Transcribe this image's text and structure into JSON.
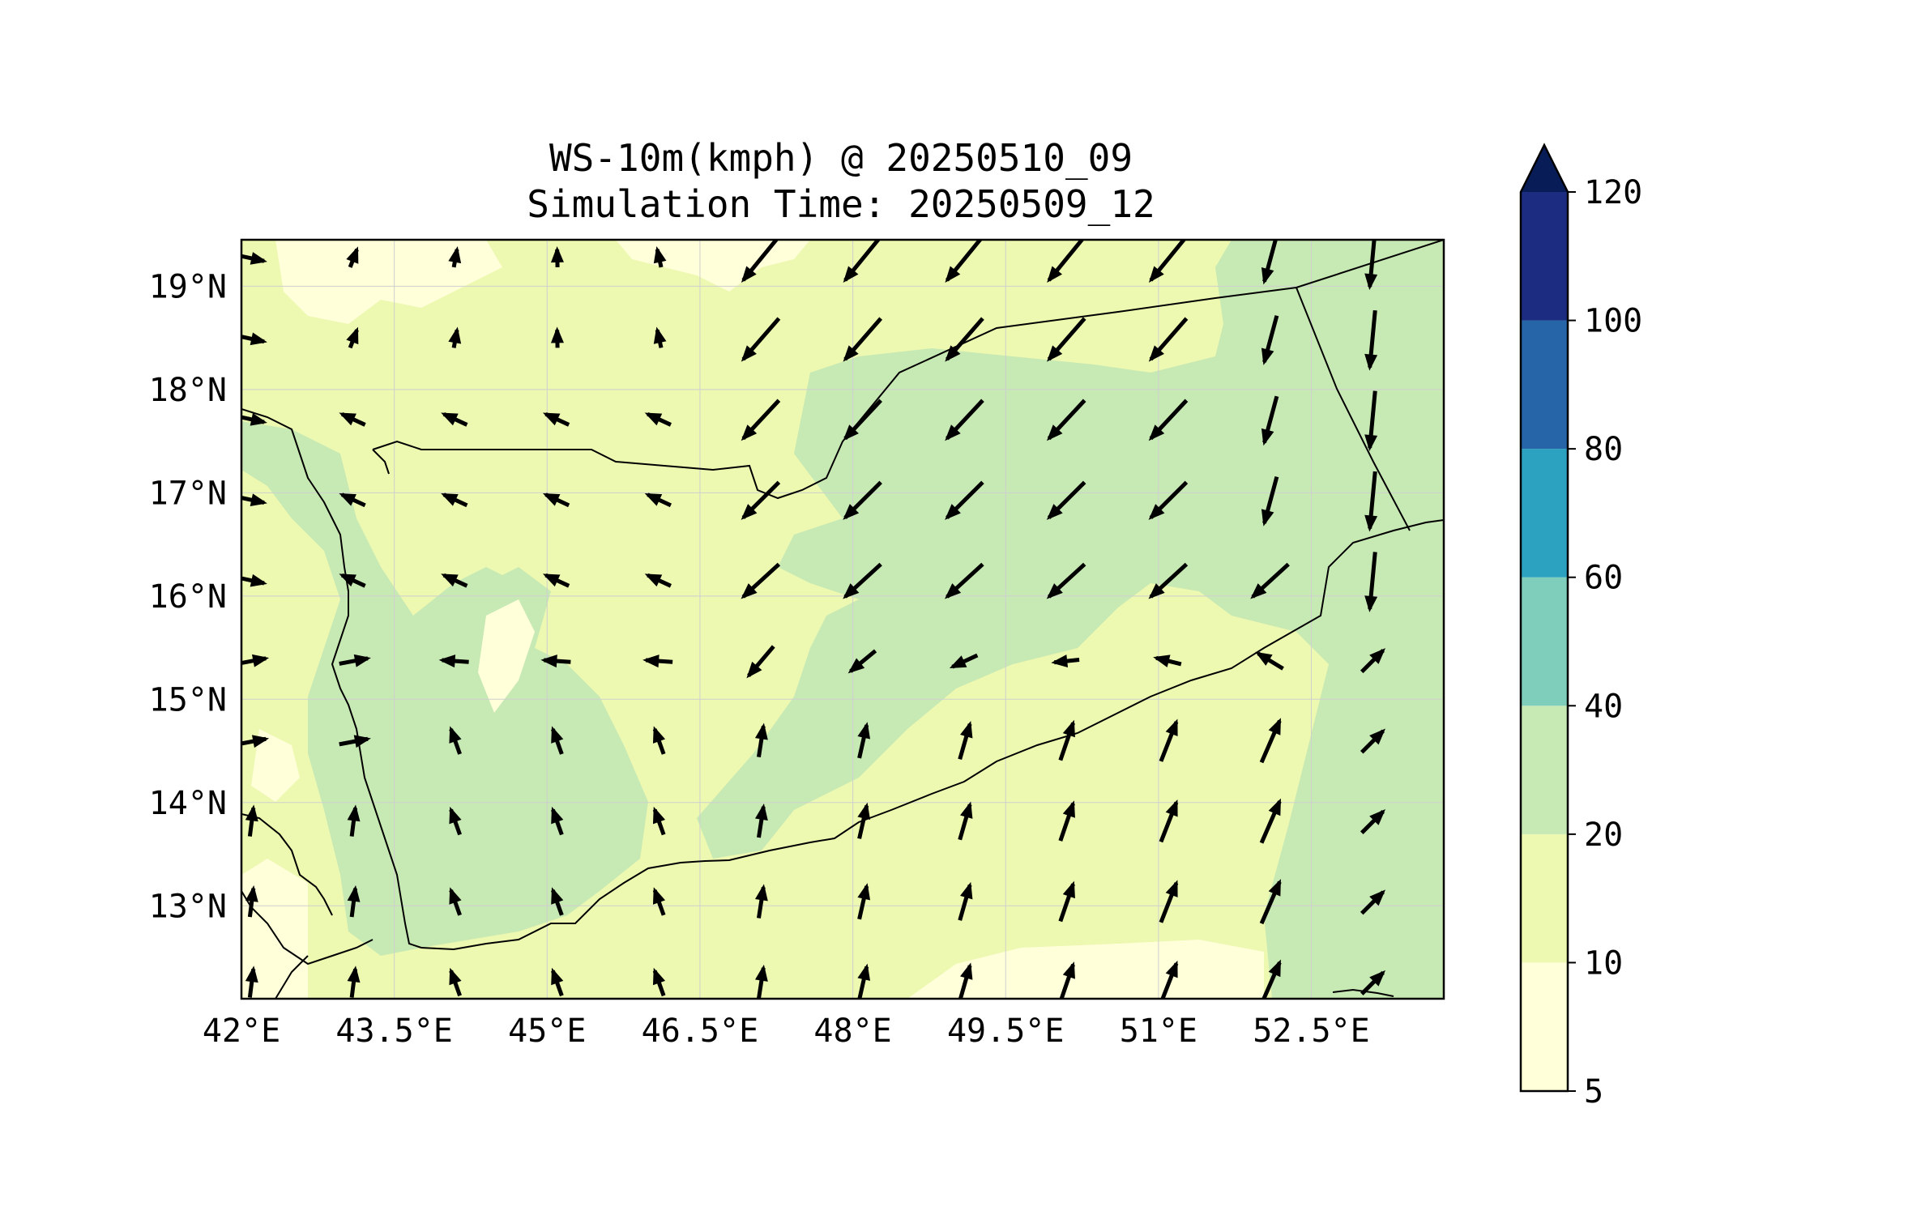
{
  "title": "WS-10m(kmph) @ 20250510_09",
  "subtitle": "Simulation Time: 20250509_12",
  "map": {
    "lon_range": [
      42,
      53.8
    ],
    "lat_range": [
      12.1,
      19.45
    ],
    "lon_ticks": [
      "42°E",
      "43.5°E",
      "45°E",
      "46.5°E",
      "48°E",
      "49.5°E",
      "51°E",
      "52.5°E"
    ],
    "lon_tick_values": [
      42,
      43.5,
      45,
      46.5,
      48,
      49.5,
      51,
      52.5
    ],
    "lat_ticks": [
      "13°N",
      "14°N",
      "15°N",
      "16°N",
      "17°N",
      "18°N",
      "19°N"
    ],
    "lat_tick_values": [
      13,
      14,
      15,
      16,
      17,
      18,
      19
    ],
    "gridlines": true,
    "vector_field": "10 m wind direction arrows (lengths ∝ speed)"
  },
  "colorbar": {
    "levels": [
      5,
      10,
      20,
      40,
      60,
      80,
      100,
      120
    ],
    "labels": [
      "5",
      "10",
      "20",
      "40",
      "60",
      "80",
      "100",
      "120"
    ],
    "colors": [
      "#ffffd9",
      "#edf8b1",
      "#c7e9b4",
      "#7fcdbb",
      "#2ca1c0",
      "#2565a8",
      "#1c2c80"
    ],
    "extend_color": "#081d58",
    "extend": "max"
  },
  "colors": {
    "land_base": "#edf8b1",
    "light": "#ffffd9",
    "green": "#c7e9b4",
    "arrow": "#000000"
  }
}
